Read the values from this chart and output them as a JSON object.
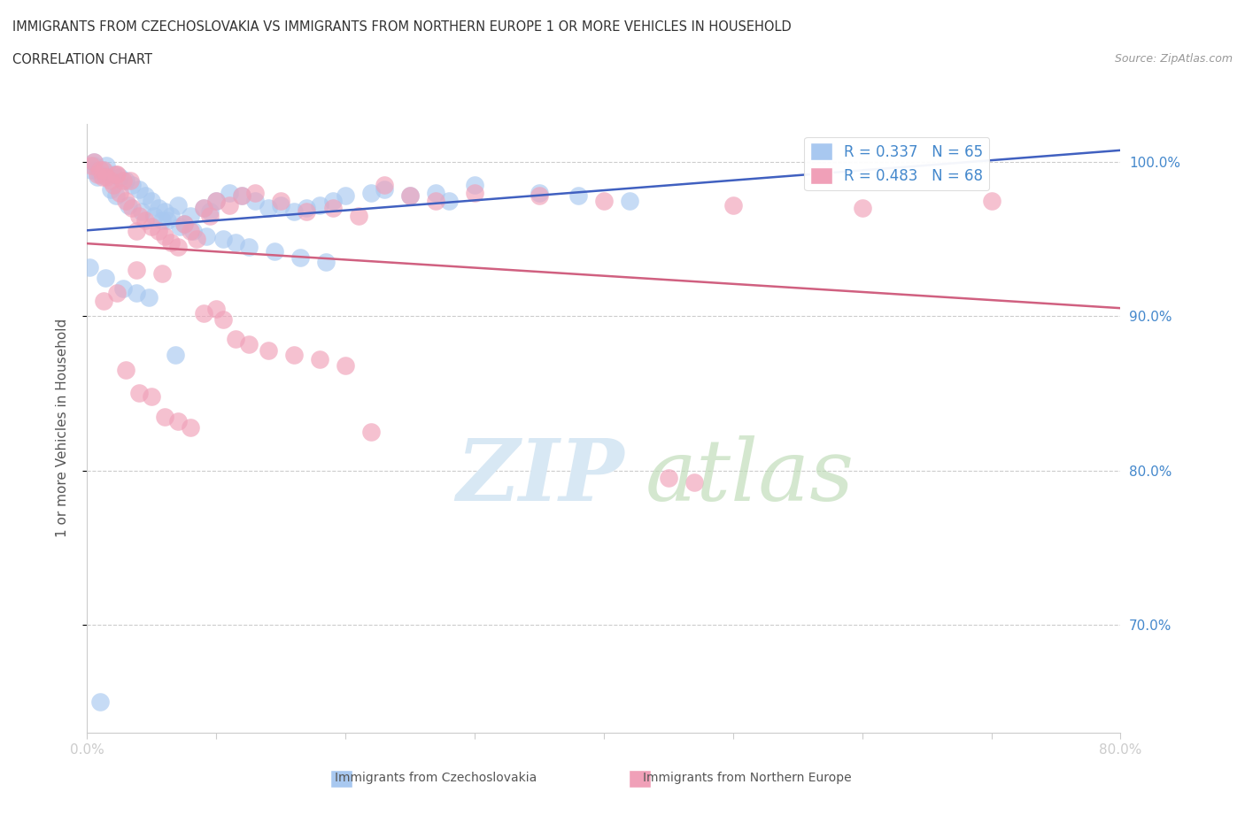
{
  "title_line1": "IMMIGRANTS FROM CZECHOSLOVAKIA VS IMMIGRANTS FROM NORTHERN EUROPE 1 OR MORE VEHICLES IN HOUSEHOLD",
  "title_line2": "CORRELATION CHART",
  "source": "Source: ZipAtlas.com",
  "ylabel": "1 or more Vehicles in Household",
  "legend_blue_label": "R = 0.337   N = 65",
  "legend_pink_label": "R = 0.483   N = 68",
  "color_blue": "#A8C8F0",
  "color_pink": "#F0A0B8",
  "color_blue_line": "#4060C0",
  "color_pink_line": "#D06080",
  "color_ytick": "#4488CC",
  "color_xtick": "#888888",
  "color_grid": "#CCCCCC",
  "watermark_zip_color": "#D8E8F4",
  "watermark_atlas_color": "#B8D8B0",
  "blue_x": [
    0.3,
    0.5,
    0.5,
    0.8,
    1.0,
    1.2,
    1.4,
    1.5,
    1.8,
    2.0,
    2.2,
    2.5,
    2.8,
    3.0,
    3.2,
    3.5,
    3.8,
    4.0,
    4.2,
    4.5,
    4.8,
    5.0,
    5.2,
    5.5,
    5.8,
    6.0,
    6.2,
    6.5,
    6.8,
    7.0,
    7.2,
    7.5,
    8.0,
    8.2,
    9.0,
    9.2,
    9.5,
    10.0,
    10.5,
    11.0,
    11.5,
    12.0,
    12.5,
    13.0,
    14.0,
    14.5,
    15.0,
    16.0,
    16.5,
    17.0,
    18.0,
    18.5,
    19.0,
    20.0,
    22.0,
    23.0,
    25.0,
    27.0,
    28.0,
    30.0,
    35.0,
    38.0,
    42.0,
    0.2,
    1.0
  ],
  "blue_y": [
    99.5,
    99.8,
    100.0,
    99.0,
    99.2,
    99.5,
    92.5,
    99.8,
    98.2,
    99.2,
    97.8,
    99.0,
    91.8,
    98.8,
    97.2,
    98.5,
    91.5,
    98.2,
    96.8,
    97.8,
    91.2,
    97.5,
    96.5,
    97.0,
    96.2,
    96.8,
    96.2,
    96.5,
    87.5,
    97.2,
    95.8,
    96.0,
    96.5,
    95.5,
    97.0,
    95.2,
    96.8,
    97.5,
    95.0,
    98.0,
    94.8,
    97.8,
    94.5,
    97.5,
    97.0,
    94.2,
    97.2,
    96.8,
    93.8,
    97.0,
    97.2,
    93.5,
    97.5,
    97.8,
    98.0,
    98.2,
    97.8,
    98.0,
    97.5,
    98.5,
    98.0,
    97.8,
    97.5,
    93.2,
    65.0
  ],
  "pink_x": [
    0.3,
    0.5,
    0.8,
    1.0,
    1.2,
    1.3,
    1.5,
    1.8,
    2.0,
    2.2,
    2.3,
    2.5,
    2.8,
    3.0,
    3.3,
    3.5,
    3.8,
    4.0,
    4.5,
    5.0,
    5.5,
    6.0,
    6.5,
    7.0,
    7.5,
    8.0,
    8.5,
    9.0,
    9.5,
    10.0,
    10.5,
    11.0,
    11.5,
    12.0,
    12.5,
    13.0,
    14.0,
    15.0,
    16.0,
    17.0,
    18.0,
    19.0,
    20.0,
    21.0,
    22.0,
    23.0,
    25.0,
    27.0,
    30.0,
    35.0,
    40.0,
    45.0,
    47.0,
    50.0,
    60.0,
    70.0,
    3.0,
    4.0,
    5.0,
    6.0,
    7.0,
    8.0,
    9.0,
    10.0,
    1.3,
    2.3,
    3.8,
    5.8
  ],
  "pink_y": [
    99.8,
    100.0,
    99.2,
    99.5,
    99.0,
    99.5,
    99.0,
    98.8,
    98.5,
    99.2,
    99.2,
    98.0,
    98.8,
    97.5,
    98.8,
    97.0,
    95.5,
    96.5,
    96.2,
    95.8,
    95.5,
    95.2,
    94.8,
    94.5,
    96.0,
    95.5,
    95.0,
    97.0,
    96.5,
    97.5,
    89.8,
    97.2,
    88.5,
    97.8,
    88.2,
    98.0,
    87.8,
    97.5,
    87.5,
    96.8,
    87.2,
    97.0,
    86.8,
    96.5,
    82.5,
    98.5,
    97.8,
    97.5,
    98.0,
    97.8,
    97.5,
    79.5,
    79.2,
    97.2,
    97.0,
    97.5,
    86.5,
    85.0,
    84.8,
    83.5,
    83.2,
    82.8,
    90.2,
    90.5,
    91.0,
    91.5,
    93.0,
    92.8
  ],
  "xmin": 0.0,
  "xmax": 80.0,
  "ymin": 63.0,
  "ymax": 102.5,
  "yticks": [
    70.0,
    80.0,
    90.0,
    100.0
  ],
  "xticks": [
    0.0,
    10.0,
    20.0,
    30.0,
    40.0,
    50.0,
    60.0,
    70.0,
    80.0
  ]
}
